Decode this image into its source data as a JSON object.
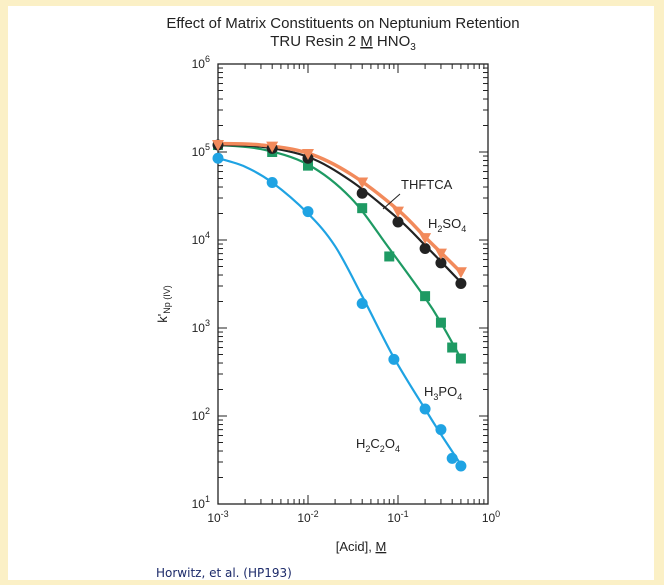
{
  "chart_data": {
    "type": "scatter",
    "title": "Effect of Matrix Constituents on Neptunium Retention",
    "subtitle": "TRU Resin 2 M HNO3",
    "subtitle_parts": {
      "before": "TRU Resin 2 ",
      "underlined": "M",
      "after": " HNO",
      "sub": "3"
    },
    "xlabel": "[Acid], M",
    "xlabel_parts": {
      "before": "[Acid], ",
      "underlined": "M"
    },
    "ylabel": "k'Np (IV)",
    "ylabel_parts": {
      "main": "k'",
      "sub": "Np (IV)"
    },
    "x_scale": "log",
    "y_scale": "log",
    "xlim": [
      0.001,
      1
    ],
    "ylim": [
      10,
      1000000
    ],
    "x_ticks": [
      {
        "value": 0.001,
        "base": "10",
        "exp": "-3"
      },
      {
        "value": 0.01,
        "base": "10",
        "exp": "-2"
      },
      {
        "value": 0.1,
        "base": "10",
        "exp": "-1"
      },
      {
        "value": 1,
        "base": "10",
        "exp": "0"
      }
    ],
    "y_ticks": [
      {
        "value": 10,
        "base": "10",
        "exp": "1"
      },
      {
        "value": 100,
        "base": "10",
        "exp": "2"
      },
      {
        "value": 1000,
        "base": "10",
        "exp": "3"
      },
      {
        "value": 10000,
        "base": "10",
        "exp": "4"
      },
      {
        "value": 100000,
        "base": "10",
        "exp": "5"
      },
      {
        "value": 1000000,
        "base": "10",
        "exp": "6"
      }
    ],
    "grid": false,
    "series": [
      {
        "name": "THFTCA",
        "label_main": "THFTCA",
        "label_sub": "",
        "label_tail": "",
        "color": "#f28a5b",
        "marker": "triangle",
        "x": [
          0.001,
          0.004,
          0.01,
          0.04,
          0.1,
          0.2,
          0.3,
          0.5
        ],
        "y": [
          120000,
          115000,
          95000,
          45000,
          21000,
          10500,
          7000,
          4300
        ],
        "curve_x": [
          0.001,
          0.003,
          0.01,
          0.03,
          0.1,
          0.2,
          0.3,
          0.5
        ],
        "curve_y": [
          125000,
          120000,
          97000,
          56000,
          22000,
          10800,
          7200,
          4300
        ]
      },
      {
        "name": "H2SO4",
        "label_main": "H",
        "label_sub": "2",
        "label_tail": "SO4",
        "label_tail_main": "SO",
        "label_tail_sub": "4",
        "color": "#222222",
        "marker": "circle",
        "x": [
          0.001,
          0.004,
          0.01,
          0.04,
          0.1,
          0.2,
          0.3,
          0.5
        ],
        "y": [
          120000,
          110000,
          85000,
          34000,
          16000,
          8000,
          5500,
          3200
        ],
        "curve_x": [
          0.001,
          0.003,
          0.01,
          0.03,
          0.1,
          0.2,
          0.3,
          0.5
        ],
        "curve_y": [
          120000,
          115000,
          88000,
          47000,
          17500,
          8700,
          5700,
          3300
        ]
      },
      {
        "name": "H3PO4",
        "label_main": "H",
        "label_sub": "3",
        "label_tail": "PO4",
        "label_tail_main": "PO",
        "label_tail_sub": "4",
        "color": "#1e9a63",
        "marker": "square",
        "x": [
          0.001,
          0.004,
          0.01,
          0.04,
          0.08,
          0.2,
          0.3,
          0.4,
          0.5
        ],
        "y": [
          120000,
          100000,
          70000,
          23000,
          6500,
          2300,
          1150,
          600,
          450
        ],
        "curve_x": [
          0.001,
          0.003,
          0.01,
          0.03,
          0.08,
          0.2,
          0.3,
          0.5
        ],
        "curve_y": [
          120000,
          108000,
          72000,
          30000,
          8000,
          2200,
          1150,
          450
        ]
      },
      {
        "name": "H2C2O4",
        "label_main": "H",
        "label_sub": "2",
        "label_tail": "C2O4",
        "label_tail_main": "C",
        "label_tail_sub": "2",
        "label_tail_main2": "O",
        "label_tail_sub2": "4",
        "color": "#1fa3e3",
        "marker": "circle",
        "x": [
          0.001,
          0.004,
          0.01,
          0.04,
          0.09,
          0.2,
          0.3,
          0.4,
          0.5
        ],
        "y": [
          85000,
          45000,
          21000,
          1900,
          440,
          120,
          70,
          33,
          27
        ],
        "curve_x": [
          0.001,
          0.002,
          0.004,
          0.01,
          0.02,
          0.04,
          0.09,
          0.2,
          0.3,
          0.5
        ],
        "curve_y": [
          85000,
          68000,
          45000,
          20000,
          8500,
          2300,
          460,
          120,
          62,
          28
        ]
      }
    ],
    "annotations": [
      {
        "text": "THFTCA",
        "series": "THFTCA"
      }
    ]
  },
  "footer": {
    "credit": "Horwitz, et al. (HP193)"
  }
}
